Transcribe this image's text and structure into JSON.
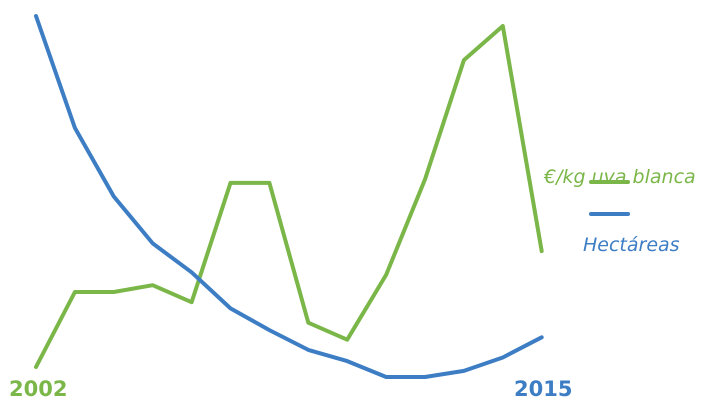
{
  "chart_data": {
    "type": "line",
    "x_start_label": "2002",
    "x_end_label": "2015",
    "grid": false,
    "axes_visible": false,
    "legend_position": "right",
    "series": [
      {
        "name": "€/kg uva blanca",
        "color": "#7ab648",
        "values": [
          0.0,
          0.22,
          0.22,
          0.24,
          0.19,
          0.54,
          0.54,
          0.13,
          0.08,
          0.27,
          0.55,
          0.9,
          1.0,
          0.34
        ]
      },
      {
        "name": "Hectáreas",
        "color": "#3c7dc4",
        "values": [
          1.0,
          0.69,
          0.5,
          0.37,
          0.29,
          0.19,
          0.13,
          0.075,
          0.044,
          0.0,
          0.0,
          0.017,
          0.054,
          0.11
        ]
      }
    ]
  }
}
